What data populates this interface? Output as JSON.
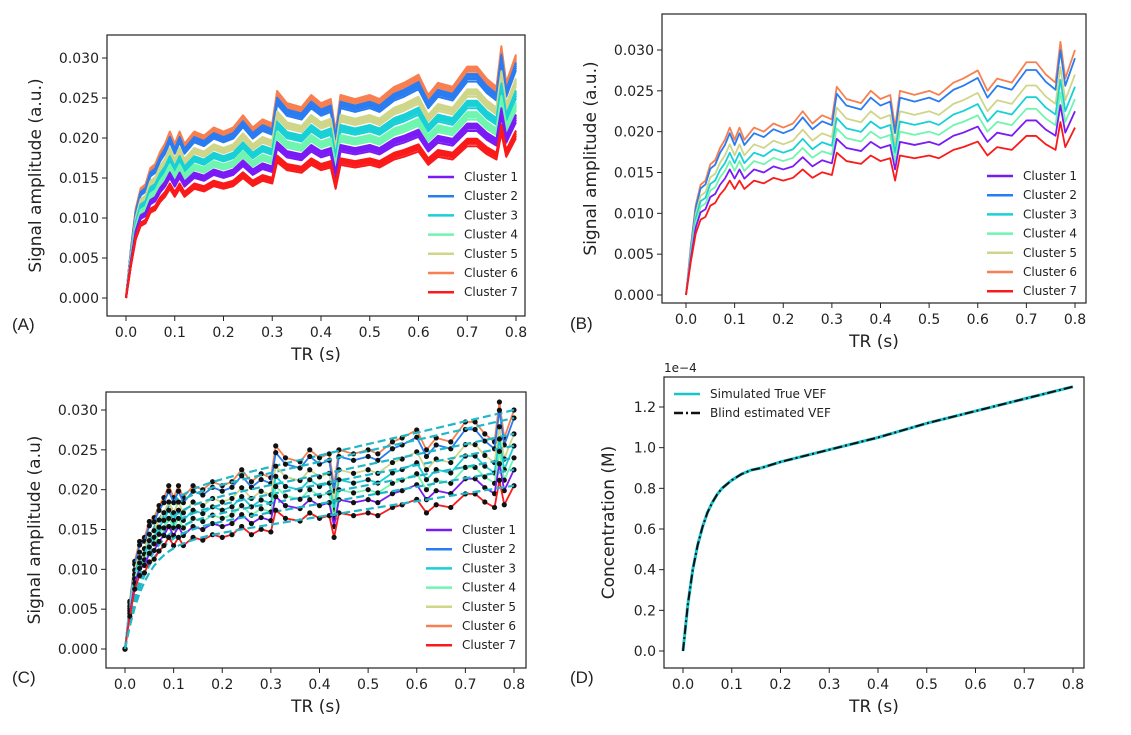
{
  "chart_data": [
    {
      "panel_label": "(A)",
      "type": "line",
      "xlabel": "TR (s)",
      "ylabel": "Signal amplitude (a.u.)",
      "xlim": [
        0,
        0.8
      ],
      "ylim": [
        0,
        0.03
      ],
      "xticks": [
        "0.0",
        "0.1",
        "0.2",
        "0.3",
        "0.4",
        "0.5",
        "0.6",
        "0.7",
        "0.8"
      ],
      "yticks": [
        "0.000",
        "0.005",
        "0.010",
        "0.015",
        "0.020",
        "0.025",
        "0.030"
      ],
      "legend_position": "lower-right",
      "style": "multi-line-bands"
    },
    {
      "panel_label": "(B)",
      "type": "line",
      "xlabel": "TR (s)",
      "ylabel": "Signal amplitude (a.u.)",
      "xlim": [
        0,
        0.8
      ],
      "ylim": [
        0,
        0.03
      ],
      "xticks": [
        "0.0",
        "0.1",
        "0.2",
        "0.3",
        "0.4",
        "0.5",
        "0.6",
        "0.7",
        "0.8"
      ],
      "yticks": [
        "0.000",
        "0.005",
        "0.010",
        "0.015",
        "0.020",
        "0.025",
        "0.030"
      ],
      "legend_position": "lower-right",
      "style": "single-line"
    },
    {
      "panel_label": "(C)",
      "type": "line",
      "xlabel": "TR (s)",
      "ylabel": "Signal amplitude (a.u)",
      "xlim": [
        0,
        0.8
      ],
      "ylim": [
        0,
        0.03
      ],
      "xticks": [
        "0.0",
        "0.1",
        "0.2",
        "0.3",
        "0.4",
        "0.5",
        "0.6",
        "0.7",
        "0.8"
      ],
      "yticks": [
        "0.000",
        "0.005",
        "0.010",
        "0.015",
        "0.020",
        "0.025",
        "0.030"
      ],
      "legend_position": "lower-right",
      "style": "points-with-fit"
    },
    {
      "panel_label": "(D)",
      "type": "line",
      "xlabel": "TR (s)",
      "ylabel": "Concentration (M)",
      "offset_text": "1e−4",
      "xlim": [
        0,
        0.8
      ],
      "ylim": [
        0,
        1.3
      ],
      "xticks": [
        "0.0",
        "0.1",
        "0.2",
        "0.3",
        "0.4",
        "0.5",
        "0.6",
        "0.7",
        "0.8"
      ],
      "yticks": [
        "0.0",
        "0.2",
        "0.4",
        "0.6",
        "0.8",
        "1.0",
        "1.2"
      ],
      "legend_position": "top-left",
      "series": [
        {
          "name": "Simulated True VEF",
          "color": "#17c3cc",
          "dash": "solid"
        },
        {
          "name": "Blind estimated VEF",
          "color": "#111111",
          "dash": "dashdot"
        }
      ],
      "x": [
        0,
        0.01,
        0.02,
        0.03,
        0.04,
        0.05,
        0.06,
        0.07,
        0.08,
        0.09,
        0.1,
        0.12,
        0.14,
        0.16,
        0.2,
        0.3,
        0.4,
        0.5,
        0.6,
        0.7,
        0.8
      ],
      "values": [
        0,
        0.23,
        0.4,
        0.52,
        0.61,
        0.68,
        0.73,
        0.77,
        0.8,
        0.82,
        0.84,
        0.87,
        0.89,
        0.9,
        0.93,
        0.99,
        1.05,
        1.12,
        1.18,
        1.24,
        1.3
      ]
    }
  ],
  "clusters": {
    "names": [
      "Cluster 1",
      "Cluster 2",
      "Cluster 3",
      "Cluster 4",
      "Cluster 5",
      "Cluster 6",
      "Cluster 7"
    ],
    "colors": [
      "#7a1bf5",
      "#2a7cf0",
      "#18d0d6",
      "#6ff5b0",
      "#cfd68a",
      "#f77f50",
      "#fb1a1a"
    ],
    "final_values_at_0_8": [
      0.0225,
      0.029,
      0.0255,
      0.024,
      0.027,
      0.03,
      0.0205
    ],
    "x": [
      0,
      0.01,
      0.02,
      0.03,
      0.04,
      0.05,
      0.06,
      0.07,
      0.08,
      0.09,
      0.1,
      0.11,
      0.12,
      0.14,
      0.16,
      0.18,
      0.2,
      0.22,
      0.24,
      0.26,
      0.28,
      0.3,
      0.31,
      0.33,
      0.36,
      0.38,
      0.4,
      0.42,
      0.43,
      0.44,
      0.47,
      0.5,
      0.52,
      0.55,
      0.57,
      0.6,
      0.62,
      0.64,
      0.67,
      0.7,
      0.72,
      0.74,
      0.76,
      0.77,
      0.78,
      0.8
    ],
    "cluster6_values": [
      0,
      0.006,
      0.011,
      0.0135,
      0.014,
      0.016,
      0.0165,
      0.018,
      0.019,
      0.0205,
      0.019,
      0.0205,
      0.019,
      0.0205,
      0.02,
      0.021,
      0.0205,
      0.021,
      0.0225,
      0.021,
      0.022,
      0.0215,
      0.0255,
      0.024,
      0.0235,
      0.025,
      0.024,
      0.0245,
      0.0205,
      0.025,
      0.0245,
      0.025,
      0.0245,
      0.026,
      0.0265,
      0.0275,
      0.025,
      0.0265,
      0.026,
      0.0285,
      0.0285,
      0.027,
      0.026,
      0.031,
      0.0265,
      0.03
    ]
  }
}
